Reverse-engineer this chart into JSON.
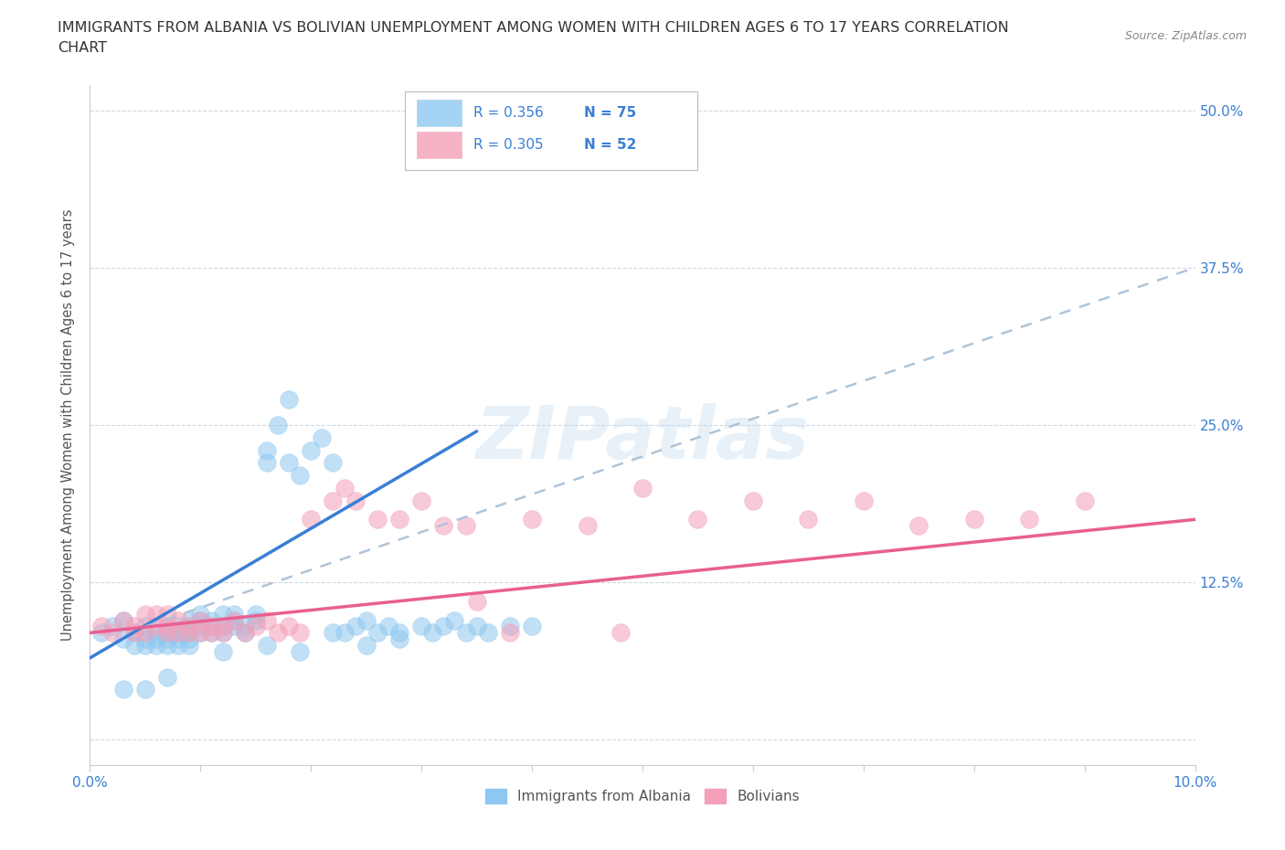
{
  "title_line1": "IMMIGRANTS FROM ALBANIA VS BOLIVIAN UNEMPLOYMENT AMONG WOMEN WITH CHILDREN AGES 6 TO 17 YEARS CORRELATION",
  "title_line2": "CHART",
  "source_text": "Source: ZipAtlas.com",
  "ylabel": "Unemployment Among Women with Children Ages 6 to 17 years",
  "xlim": [
    0.0,
    0.1
  ],
  "ylim": [
    -0.02,
    0.52
  ],
  "xticks": [
    0.0,
    0.01,
    0.02,
    0.03,
    0.04,
    0.05,
    0.06,
    0.07,
    0.08,
    0.09,
    0.1
  ],
  "xticklabels": [
    "0.0%",
    "",
    "",
    "",
    "",
    "",
    "",
    "",
    "",
    "",
    "10.0%"
  ],
  "yticks": [
    0.0,
    0.125,
    0.25,
    0.375,
    0.5
  ],
  "yticklabels": [
    "",
    "12.5%",
    "25.0%",
    "37.5%",
    "50.0%"
  ],
  "legend_blue_r": "R = 0.356",
  "legend_blue_n": "N = 75",
  "legend_pink_r": "R = 0.305",
  "legend_pink_n": "N = 52",
  "legend_label_blue": "Immigrants from Albania",
  "legend_label_pink": "Bolivians",
  "color_blue": "#8ec8f0",
  "color_pink": "#f4a0b8",
  "color_blue_line": "#3a7fd5",
  "color_gray_line": "#b0c4d8",
  "color_pink_line": "#e86090",
  "color_text_blue": "#3a7fd5",
  "color_text_dark": "#222222",
  "blue_trend_x": [
    0.0,
    0.035
  ],
  "blue_trend_y": [
    0.065,
    0.245
  ],
  "gray_trend_x": [
    0.005,
    0.1
  ],
  "gray_trend_y": [
    0.09,
    0.375
  ],
  "pink_trend_x": [
    0.0,
    0.1
  ],
  "pink_trend_y": [
    0.085,
    0.175
  ],
  "blue_scatter_x": [
    0.001,
    0.002,
    0.003,
    0.003,
    0.004,
    0.004,
    0.005,
    0.005,
    0.005,
    0.006,
    0.006,
    0.006,
    0.007,
    0.007,
    0.007,
    0.007,
    0.008,
    0.008,
    0.008,
    0.008,
    0.009,
    0.009,
    0.009,
    0.009,
    0.01,
    0.01,
    0.01,
    0.01,
    0.011,
    0.011,
    0.011,
    0.012,
    0.012,
    0.012,
    0.013,
    0.013,
    0.013,
    0.014,
    0.014,
    0.015,
    0.015,
    0.016,
    0.016,
    0.017,
    0.018,
    0.018,
    0.019,
    0.02,
    0.021,
    0.022,
    0.023,
    0.024,
    0.025,
    0.026,
    0.027,
    0.028,
    0.03,
    0.031,
    0.032,
    0.033,
    0.034,
    0.035,
    0.036,
    0.038,
    0.04,
    0.022,
    0.028,
    0.016,
    0.012,
    0.009,
    0.007,
    0.005,
    0.003,
    0.019,
    0.025
  ],
  "blue_scatter_y": [
    0.085,
    0.09,
    0.08,
    0.095,
    0.085,
    0.075,
    0.09,
    0.08,
    0.075,
    0.085,
    0.075,
    0.08,
    0.085,
    0.09,
    0.075,
    0.08,
    0.085,
    0.09,
    0.08,
    0.075,
    0.08,
    0.085,
    0.09,
    0.095,
    0.085,
    0.09,
    0.095,
    0.1,
    0.085,
    0.09,
    0.095,
    0.085,
    0.09,
    0.1,
    0.09,
    0.095,
    0.1,
    0.085,
    0.09,
    0.1,
    0.095,
    0.22,
    0.23,
    0.25,
    0.22,
    0.27,
    0.21,
    0.23,
    0.24,
    0.22,
    0.085,
    0.09,
    0.095,
    0.085,
    0.09,
    0.085,
    0.09,
    0.085,
    0.09,
    0.095,
    0.085,
    0.09,
    0.085,
    0.09,
    0.09,
    0.085,
    0.08,
    0.075,
    0.07,
    0.075,
    0.05,
    0.04,
    0.04,
    0.07,
    0.075
  ],
  "pink_scatter_x": [
    0.001,
    0.002,
    0.003,
    0.004,
    0.004,
    0.005,
    0.005,
    0.006,
    0.006,
    0.007,
    0.007,
    0.007,
    0.008,
    0.008,
    0.009,
    0.009,
    0.01,
    0.01,
    0.011,
    0.011,
    0.012,
    0.012,
    0.013,
    0.014,
    0.015,
    0.016,
    0.017,
    0.018,
    0.019,
    0.02,
    0.022,
    0.023,
    0.024,
    0.026,
    0.028,
    0.03,
    0.032,
    0.034,
    0.04,
    0.045,
    0.05,
    0.055,
    0.06,
    0.065,
    0.07,
    0.075,
    0.08,
    0.085,
    0.09,
    0.035,
    0.048,
    0.038
  ],
  "pink_scatter_y": [
    0.09,
    0.085,
    0.095,
    0.09,
    0.085,
    0.1,
    0.085,
    0.09,
    0.1,
    0.085,
    0.09,
    0.1,
    0.085,
    0.095,
    0.085,
    0.09,
    0.085,
    0.095,
    0.085,
    0.09,
    0.085,
    0.09,
    0.095,
    0.085,
    0.09,
    0.095,
    0.085,
    0.09,
    0.085,
    0.175,
    0.19,
    0.2,
    0.19,
    0.175,
    0.175,
    0.19,
    0.17,
    0.17,
    0.175,
    0.17,
    0.2,
    0.175,
    0.19,
    0.175,
    0.19,
    0.17,
    0.175,
    0.175,
    0.19,
    0.11,
    0.085,
    0.085
  ],
  "watermark_text": "ZIPatlas",
  "background_color": "#ffffff",
  "grid_color": "#d0d8e0",
  "title_color": "#333333",
  "axis_label_color": "#555555"
}
